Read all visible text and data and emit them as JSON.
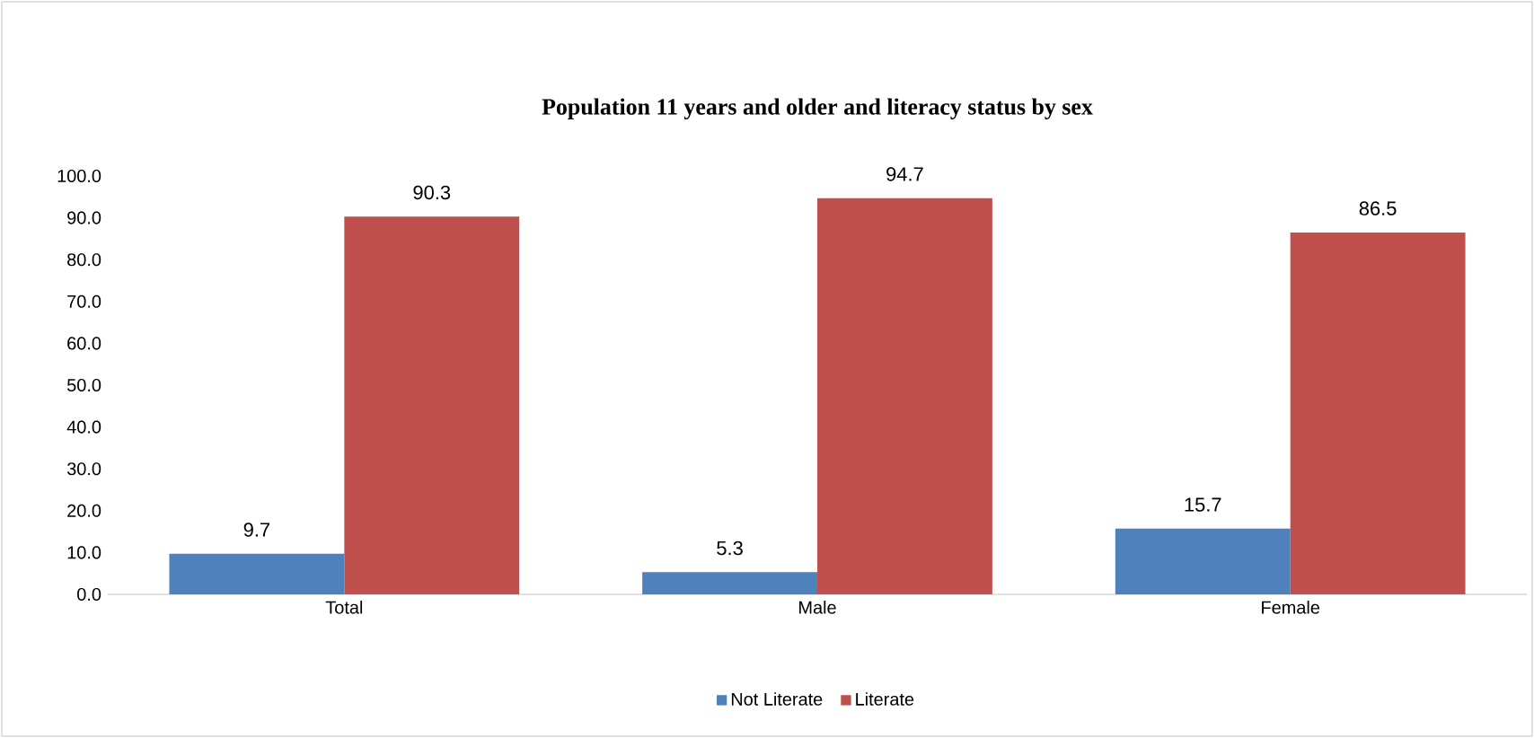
{
  "chart_data": {
    "type": "bar",
    "title": "Population 11 years and older and literacy status by sex",
    "categories": [
      "Total",
      "Male",
      "Female"
    ],
    "series": [
      {
        "name": "Not Literate",
        "color": "#4f81bd",
        "values": [
          9.7,
          5.3,
          15.7
        ]
      },
      {
        "name": "Literate",
        "color": "#c0504d",
        "values": [
          90.3,
          94.7,
          86.5
        ]
      }
    ],
    "ylim": [
      0,
      100
    ],
    "yticks": [
      {
        "value": 0,
        "label": "0.0"
      },
      {
        "value": 10,
        "label": "10.0"
      },
      {
        "value": 20,
        "label": "20.0"
      },
      {
        "value": 30,
        "label": "30.0"
      },
      {
        "value": 40,
        "label": "40.0"
      },
      {
        "value": 50,
        "label": "50.0"
      },
      {
        "value": 60,
        "label": "60.0"
      },
      {
        "value": 70,
        "label": "70.0"
      },
      {
        "value": 80,
        "label": "80.0"
      },
      {
        "value": 90,
        "label": "90.0"
      },
      {
        "value": 100,
        "label": "100.0"
      }
    ],
    "data_labels": true,
    "legend": "bottom",
    "grid": false
  }
}
